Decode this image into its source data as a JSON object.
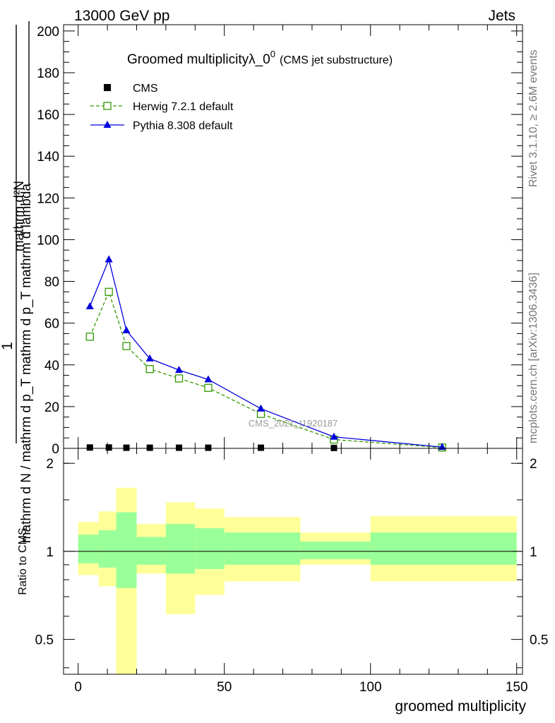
{
  "header": {
    "left": "13000 GeV pp",
    "right": "Jets"
  },
  "side_labels": {
    "rivet": "Rivet 3.1.10, ≥ 2.6M events",
    "mcplots": "mcplots.cern.ch [arXiv:1306.3436]"
  },
  "chart_data": [
    {
      "type": "line",
      "title": "Groomed multiplicityλ_0",
      "title_sup": "0",
      "subtitle": "(CMS jet substructure)",
      "ylabel_top": "1",
      "ylabel_num": "mathrm d²N",
      "ylabel_den": "mathrm d N / mathrm d p_T mathrm d p_T mathrm d lambda",
      "watermark": "CMS_2021_I1920187",
      "xlim": [
        -5,
        152
      ],
      "ylim": [
        0,
        203
      ],
      "yticks": [
        0,
        20,
        40,
        60,
        80,
        100,
        120,
        140,
        160,
        180,
        200
      ],
      "legend_position": "top-left",
      "series": [
        {
          "name": "CMS",
          "style": "data",
          "color": "#000000",
          "x": [
            4,
            10.5,
            16.5,
            24.5,
            34.5,
            44.5,
            62.5,
            87.5,
            124.5
          ],
          "y": [
            0.4,
            0.4,
            0.3,
            0.3,
            0.3,
            0.3,
            0.3,
            0.2,
            0.1
          ]
        },
        {
          "name": "Herwig 7.2.1 default",
          "style": "dashed-open-square",
          "color": "#339900",
          "x": [
            4,
            10.5,
            16.5,
            24.5,
            34.5,
            44.5,
            62.5,
            87.5,
            124.5
          ],
          "y": [
            53.5,
            75,
            49,
            38,
            33.5,
            29,
            16.5,
            4.2,
            0.4
          ]
        },
        {
          "name": "Pythia 8.308 default",
          "style": "solid-triangle",
          "color": "#0000dd",
          "x": [
            4,
            10.5,
            16.5,
            24.5,
            34.5,
            44.5,
            62.5,
            87.5,
            124.5
          ],
          "y": [
            68,
            90.5,
            56.5,
            43,
            37.5,
            33,
            19,
            5.5,
            0.6
          ]
        }
      ]
    },
    {
      "type": "area",
      "ylabel": "Ratio to CMS",
      "xlabel": "groomed multiplicity",
      "xlim": [
        -5,
        152
      ],
      "xticks": [
        0,
        50,
        100,
        150
      ],
      "ylim": [
        0.38,
        2.25
      ],
      "yticks": [
        0.5,
        1,
        2
      ],
      "reference_line": 1,
      "bands": [
        {
          "x0": 0,
          "x1": 7,
          "inner": [
            0.91,
            1.14
          ],
          "outer": [
            0.83,
            1.26
          ]
        },
        {
          "x0": 7,
          "x1": 13,
          "inner": [
            0.88,
            1.18
          ],
          "outer": [
            0.76,
            1.37
          ]
        },
        {
          "x0": 13,
          "x1": 20,
          "inner": [
            0.75,
            1.36
          ],
          "outer": [
            0.35,
            1.65
          ]
        },
        {
          "x0": 20,
          "x1": 30,
          "inner": [
            0.9,
            1.12
          ],
          "outer": [
            0.84,
            1.24
          ]
        },
        {
          "x0": 30,
          "x1": 40,
          "inner": [
            0.84,
            1.24
          ],
          "outer": [
            0.61,
            1.47
          ]
        },
        {
          "x0": 40,
          "x1": 50,
          "inner": [
            0.87,
            1.2
          ],
          "outer": [
            0.71,
            1.4
          ]
        },
        {
          "x0": 50,
          "x1": 76,
          "inner": [
            0.9,
            1.16
          ],
          "outer": [
            0.79,
            1.31
          ]
        },
        {
          "x0": 76,
          "x1": 100,
          "inner": [
            0.94,
            1.08
          ],
          "outer": [
            0.9,
            1.16
          ]
        },
        {
          "x0": 100,
          "x1": 150,
          "inner": [
            0.9,
            1.16
          ],
          "outer": [
            0.79,
            1.32
          ]
        }
      ]
    }
  ],
  "colors": {
    "inner_band": "#99ff99",
    "outer_band": "#ffff99"
  }
}
